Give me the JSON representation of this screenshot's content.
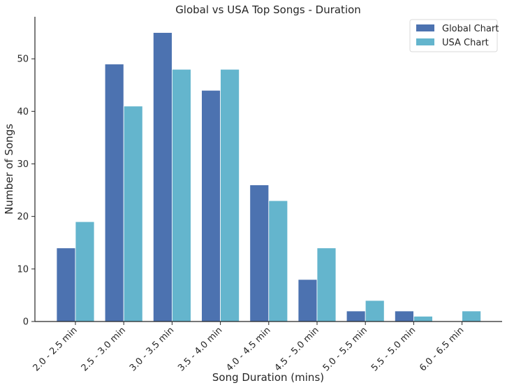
{
  "chart_data": {
    "type": "bar",
    "title": "Global vs USA Top Songs - Duration",
    "xlabel": "Song Duration (mins)",
    "ylabel": "Number of Songs",
    "ylim": [
      0,
      58
    ],
    "yticks": [
      0,
      10,
      20,
      30,
      40,
      50
    ],
    "grid": false,
    "legend_position": "top-right",
    "categories": [
      "2.0 - 2.5 min",
      "2.5 - 3.0 min",
      "3.0 - 3.5 min",
      "3.5 - 4.0 min",
      "4.0 - 4.5 min",
      "4.5 - 5.0 min",
      "5.0 - 5.5 min",
      "5.5 - 5.0 min",
      "6.0 - 6.5 min"
    ],
    "series": [
      {
        "name": "Global Chart",
        "color": "#4c72b0",
        "values": [
          14,
          49,
          55,
          44,
          26,
          8,
          2,
          2,
          0
        ]
      },
      {
        "name": "USA Chart",
        "color": "#64b5cd",
        "values": [
          19,
          41,
          48,
          48,
          23,
          14,
          4,
          1,
          2
        ]
      }
    ]
  }
}
